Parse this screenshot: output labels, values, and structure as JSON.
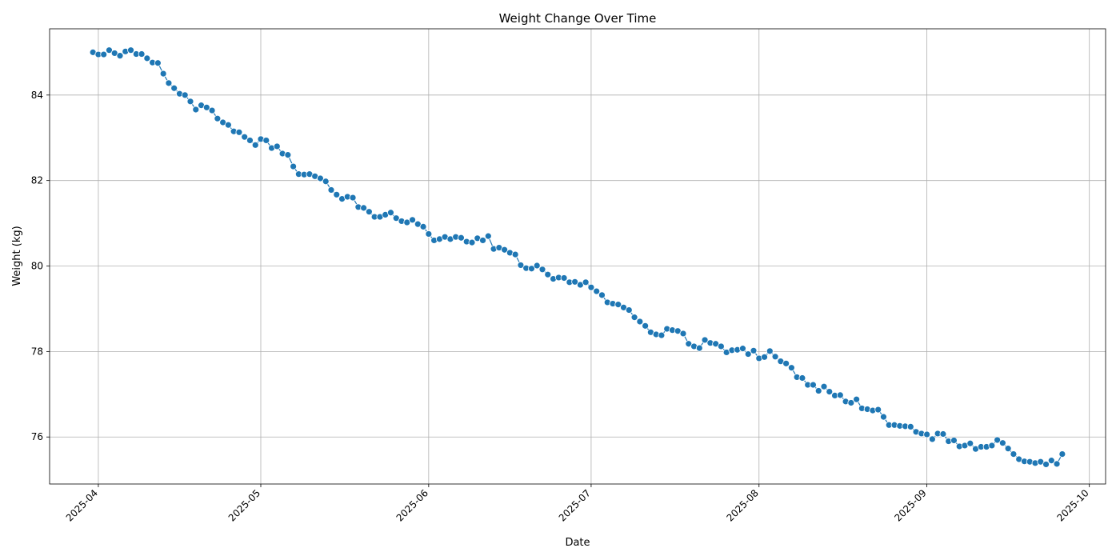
{
  "chart_data": {
    "type": "line",
    "title": "Weight Change Over Time",
    "xlabel": "Date",
    "ylabel": "Weight (kg)",
    "grid": true,
    "legend": "none",
    "xlim": [
      "2025-03-23",
      "2025-10-04"
    ],
    "ylim": [
      74.9,
      85.55
    ],
    "y_ticks": [
      76,
      78,
      80,
      82,
      84
    ],
    "x_ticks": [
      "2025-04",
      "2025-05",
      "2025-06",
      "2025-07",
      "2025-08",
      "2025-09",
      "2025-10"
    ],
    "series": [
      {
        "name": "Weight",
        "color": "#1f77b4",
        "start_date": "2025-03-31",
        "step_days": 1,
        "values": [
          85.0,
          84.95,
          84.95,
          85.05,
          84.98,
          84.92,
          85.02,
          85.05,
          84.96,
          84.96,
          84.86,
          84.76,
          84.75,
          84.5,
          84.28,
          84.16,
          84.03,
          84.0,
          83.85,
          83.66,
          83.76,
          83.71,
          83.64,
          83.45,
          83.36,
          83.3,
          83.15,
          83.13,
          83.02,
          82.94,
          82.83,
          82.97,
          82.94,
          82.76,
          82.8,
          82.63,
          82.6,
          82.33,
          82.15,
          82.14,
          82.15,
          82.1,
          82.05,
          81.98,
          81.78,
          81.67,
          81.57,
          81.62,
          81.6,
          81.38,
          81.36,
          81.27,
          81.15,
          81.15,
          81.2,
          81.25,
          81.12,
          81.05,
          81.02,
          81.08,
          80.98,
          80.92,
          80.75,
          80.6,
          80.63,
          80.68,
          80.63,
          80.68,
          80.66,
          80.57,
          80.55,
          80.65,
          80.6,
          80.7,
          80.4,
          80.43,
          80.38,
          80.31,
          80.27,
          80.02,
          79.95,
          79.94,
          80.01,
          79.92,
          79.8,
          79.7,
          79.73,
          79.72,
          79.62,
          79.63,
          79.56,
          79.62,
          79.5,
          79.41,
          79.32,
          79.15,
          79.12,
          79.1,
          79.03,
          78.97,
          78.8,
          78.7,
          78.6,
          78.45,
          78.4,
          78.38,
          78.53,
          78.5,
          78.48,
          78.42,
          78.18,
          78.12,
          78.08,
          78.27,
          78.2,
          78.18,
          78.12,
          77.98,
          78.03,
          78.04,
          78.07,
          77.94,
          78.02,
          77.84,
          77.87,
          78.01,
          77.88,
          77.77,
          77.72,
          77.62,
          77.4,
          77.38,
          77.22,
          77.22,
          77.08,
          77.18,
          77.06,
          76.97,
          76.98,
          76.83,
          76.8,
          76.88,
          76.67,
          76.65,
          76.62,
          76.64,
          76.47,
          76.28,
          76.28,
          76.26,
          76.25,
          76.24,
          76.12,
          76.08,
          76.06,
          75.95,
          76.08,
          76.07,
          75.9,
          75.92,
          75.78,
          75.8,
          75.85,
          75.72,
          75.77,
          75.77,
          75.8,
          75.93,
          75.86,
          75.73,
          75.6,
          75.48,
          75.43,
          75.42,
          75.39,
          75.42,
          75.36,
          75.45,
          75.37,
          75.6
        ]
      }
    ]
  }
}
